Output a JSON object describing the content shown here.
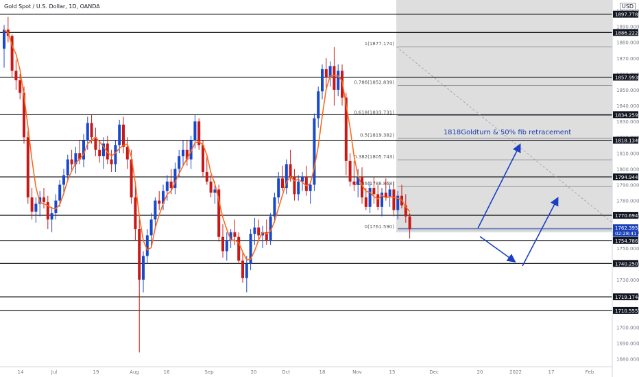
{
  "header": {
    "title": "Gold Spot / U.S. Dollar, 1D, OANDA",
    "currency": "USD"
  },
  "colors": {
    "bull": "#1848cc",
    "bear": "#c81818",
    "ma": "#ff6a1a",
    "shade": "#dedede",
    "blue_line": "#1a3fc4",
    "annotation": "#1a3fa8",
    "fib": "#787b86",
    "levelbox": "#131722",
    "last_box": "#1a40b8",
    "axis_text": "#787b86"
  },
  "chart_data": {
    "type": "candlestick",
    "symbol": "Gold Spot / U.S. Dollar",
    "interval": "1D",
    "source": "OANDA",
    "ylim": [
      1675,
      1905
    ],
    "y_ticks": [
      1680,
      1690,
      1700,
      1710,
      1720,
      1730,
      1740,
      1750,
      1760,
      1770,
      1780,
      1790,
      1800,
      1810,
      1820,
      1830,
      1840,
      1850,
      1860,
      1870,
      1880,
      1890,
      1900
    ],
    "x_ticks": [
      "14",
      "Jul",
      "19",
      "Aug",
      "16",
      "Sep",
      "20",
      "Oct",
      "18",
      "Nov",
      "15",
      "Dec",
      "20",
      "2022",
      "17",
      "Feb"
    ],
    "horizontal_levels": [
      1897.778,
      1886.222,
      1857.993,
      1834.259,
      1818.134,
      1794.944,
      1770.694,
      1754.786,
      1740.25,
      1719.174,
      1710.555
    ],
    "last_price": {
      "value": "1762.395",
      "countdown": "02:28:41"
    },
    "fib_levels": [
      {
        "label": "1(1877.174)",
        "value": 1877.174
      },
      {
        "label": "0.786(1852.839)",
        "value": 1852.839
      },
      {
        "label": "0.618(1833.731)",
        "value": 1833.731
      },
      {
        "label": "0.5(1819.382)",
        "value": 1819.382
      },
      {
        "label": "0.382(1805.743)",
        "value": 1805.743
      },
      {
        "label": "0.236(1788.868)",
        "value": 1788.868
      },
      {
        "label": "0(1761.590)",
        "value": 1761.59
      }
    ],
    "annotation": "1818Goldturn & 50% fib retracement",
    "candles": [
      [
        1876,
        1891,
        1864,
        1888
      ],
      [
        1888,
        1896,
        1880,
        1884
      ],
      [
        1884,
        1885,
        1858,
        1862
      ],
      [
        1862,
        1869,
        1850,
        1856
      ],
      [
        1856,
        1860,
        1844,
        1848
      ],
      [
        1848,
        1852,
        1816,
        1820
      ],
      [
        1820,
        1824,
        1778,
        1782
      ],
      [
        1782,
        1788,
        1768,
        1773
      ],
      [
        1773,
        1782,
        1766,
        1778
      ],
      [
        1778,
        1786,
        1770,
        1782
      ],
      [
        1782,
        1788,
        1775,
        1779
      ],
      [
        1779,
        1783,
        1762,
        1768
      ],
      [
        1768,
        1776,
        1760,
        1772
      ],
      [
        1772,
        1784,
        1768,
        1780
      ],
      [
        1780,
        1793,
        1776,
        1790
      ],
      [
        1790,
        1800,
        1784,
        1796
      ],
      [
        1796,
        1809,
        1792,
        1806
      ],
      [
        1806,
        1812,
        1798,
        1803
      ],
      [
        1803,
        1814,
        1797,
        1810
      ],
      [
        1810,
        1818,
        1803,
        1806
      ],
      [
        1806,
        1822,
        1801,
        1818
      ],
      [
        1818,
        1833,
        1812,
        1829
      ],
      [
        1829,
        1834,
        1816,
        1820
      ],
      [
        1820,
        1826,
        1808,
        1812
      ],
      [
        1812,
        1818,
        1804,
        1808
      ],
      [
        1808,
        1820,
        1800,
        1816
      ],
      [
        1816,
        1821,
        1803,
        1806
      ],
      [
        1806,
        1812,
        1798,
        1803
      ],
      [
        1803,
        1818,
        1798,
        1815
      ],
      [
        1815,
        1831,
        1810,
        1828
      ],
      [
        1828,
        1833,
        1810,
        1814
      ],
      [
        1814,
        1820,
        1800,
        1806
      ],
      [
        1806,
        1812,
        1778,
        1782
      ],
      [
        1782,
        1790,
        1755,
        1762
      ],
      [
        1762,
        1768,
        1684,
        1730
      ],
      [
        1730,
        1748,
        1722,
        1745
      ],
      [
        1745,
        1762,
        1740,
        1758
      ],
      [
        1758,
        1772,
        1750,
        1768
      ],
      [
        1768,
        1782,
        1762,
        1780
      ],
      [
        1780,
        1786,
        1774,
        1778
      ],
      [
        1778,
        1790,
        1774,
        1786
      ],
      [
        1786,
        1796,
        1780,
        1792
      ],
      [
        1792,
        1800,
        1784,
        1788
      ],
      [
        1788,
        1804,
        1784,
        1800
      ],
      [
        1800,
        1812,
        1795,
        1808
      ],
      [
        1808,
        1818,
        1802,
        1812
      ],
      [
        1812,
        1818,
        1802,
        1806
      ],
      [
        1806,
        1821,
        1800,
        1818
      ],
      [
        1818,
        1834,
        1813,
        1830
      ],
      [
        1830,
        1832,
        1812,
        1815
      ],
      [
        1815,
        1818,
        1795,
        1798
      ],
      [
        1798,
        1808,
        1790,
        1792
      ],
      [
        1792,
        1796,
        1782,
        1785
      ],
      [
        1785,
        1792,
        1778,
        1787
      ],
      [
        1787,
        1790,
        1754,
        1757
      ],
      [
        1757,
        1765,
        1744,
        1748
      ],
      [
        1748,
        1760,
        1742,
        1755
      ],
      [
        1755,
        1762,
        1750,
        1760
      ],
      [
        1760,
        1768,
        1752,
        1757
      ],
      [
        1757,
        1760,
        1740,
        1742
      ],
      [
        1742,
        1748,
        1728,
        1731
      ],
      [
        1731,
        1745,
        1722,
        1740
      ],
      [
        1740,
        1762,
        1736,
        1759
      ],
      [
        1759,
        1769,
        1752,
        1763
      ],
      [
        1763,
        1768,
        1754,
        1758
      ],
      [
        1758,
        1764,
        1750,
        1760
      ],
      [
        1760,
        1768,
        1752,
        1755
      ],
      [
        1755,
        1772,
        1752,
        1770
      ],
      [
        1770,
        1785,
        1766,
        1782
      ],
      [
        1782,
        1798,
        1778,
        1794
      ],
      [
        1794,
        1802,
        1786,
        1788
      ],
      [
        1788,
        1806,
        1784,
        1803
      ],
      [
        1803,
        1812,
        1792,
        1795
      ],
      [
        1795,
        1800,
        1780,
        1784
      ],
      [
        1784,
        1796,
        1780,
        1792
      ],
      [
        1792,
        1798,
        1786,
        1795
      ],
      [
        1795,
        1802,
        1783,
        1786
      ],
      [
        1786,
        1792,
        1778,
        1790
      ],
      [
        1790,
        1835,
        1786,
        1832
      ],
      [
        1832,
        1852,
        1826,
        1849
      ],
      [
        1849,
        1866,
        1844,
        1863
      ],
      [
        1863,
        1870,
        1850,
        1858
      ],
      [
        1858,
        1868,
        1852,
        1865
      ],
      [
        1865,
        1877,
        1840,
        1850
      ],
      [
        1850,
        1866,
        1846,
        1862
      ],
      [
        1862,
        1866,
        1840,
        1845
      ],
      [
        1845,
        1848,
        1796,
        1805
      ],
      [
        1805,
        1810,
        1789,
        1792
      ],
      [
        1792,
        1805,
        1786,
        1790
      ],
      [
        1790,
        1800,
        1782,
        1795
      ],
      [
        1795,
        1801,
        1778,
        1782
      ],
      [
        1782,
        1788,
        1774,
        1776
      ],
      [
        1776,
        1792,
        1772,
        1788
      ],
      [
        1788,
        1795,
        1778,
        1784
      ],
      [
        1784,
        1790,
        1774,
        1776
      ],
      [
        1776,
        1788,
        1770,
        1785
      ],
      [
        1785,
        1794,
        1780,
        1782
      ],
      [
        1782,
        1790,
        1776,
        1787
      ],
      [
        1787,
        1792,
        1770,
        1774
      ],
      [
        1774,
        1786,
        1768,
        1783
      ],
      [
        1783,
        1790,
        1775,
        1777
      ],
      [
        1777,
        1784,
        1766,
        1770
      ],
      [
        1770,
        1772,
        1756,
        1762
      ]
    ]
  }
}
